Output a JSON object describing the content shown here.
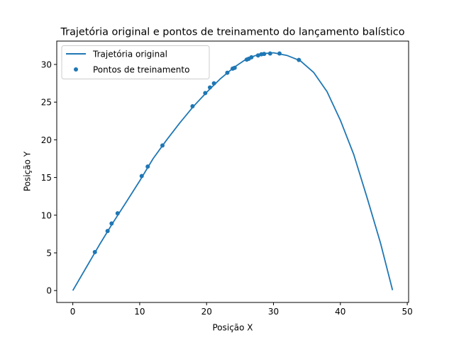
{
  "chart_data": {
    "type": "line",
    "title": "Trajetória original e pontos de treinamento do lançamento balístico",
    "xlabel": "Posição X",
    "ylabel": "Posição Y",
    "xlim": [
      -2.4,
      50.2
    ],
    "ylim": [
      -1.58,
      33.1
    ],
    "xticks": [
      0,
      10,
      20,
      30,
      40,
      50
    ],
    "yticks": [
      0,
      5,
      10,
      15,
      20,
      25,
      30
    ],
    "grid": false,
    "legend_position": "top-left",
    "series": [
      {
        "name": "Trajetória original",
        "type": "line",
        "color": "#1f77b4",
        "x": [
          0,
          2,
          4,
          6,
          8,
          10,
          12,
          14,
          16,
          18,
          20,
          22,
          24,
          26,
          28,
          30,
          32,
          34,
          36,
          38,
          40,
          42,
          44,
          46,
          47.8
        ],
        "y": [
          0,
          3.05,
          6.1,
          9.0,
          11.75,
          14.55,
          17.5,
          19.95,
          22.25,
          24.4,
          26.3,
          28.05,
          29.55,
          30.75,
          31.4,
          31.55,
          31.2,
          30.5,
          28.95,
          26.4,
          22.6,
          18.05,
          12.3,
          6.3,
          0.05
        ]
      },
      {
        "name": "Pontos de treinamento",
        "type": "scatter",
        "color": "#1f77b4",
        "x": [
          3.3,
          5.2,
          5.8,
          6.7,
          10.3,
          11.2,
          13.4,
          17.9,
          19.8,
          20.5,
          21.1,
          23.1,
          23.9,
          24.2,
          26.0,
          26.3,
          26.7,
          27.7,
          28.2,
          28.6,
          29.5,
          30.9,
          33.8
        ],
        "y": [
          5.1,
          7.9,
          8.9,
          10.25,
          15.2,
          16.45,
          19.25,
          24.45,
          26.2,
          26.95,
          27.5,
          28.9,
          29.45,
          29.55,
          30.65,
          30.75,
          30.95,
          31.2,
          31.35,
          31.4,
          31.45,
          31.45,
          30.6
        ]
      }
    ]
  }
}
